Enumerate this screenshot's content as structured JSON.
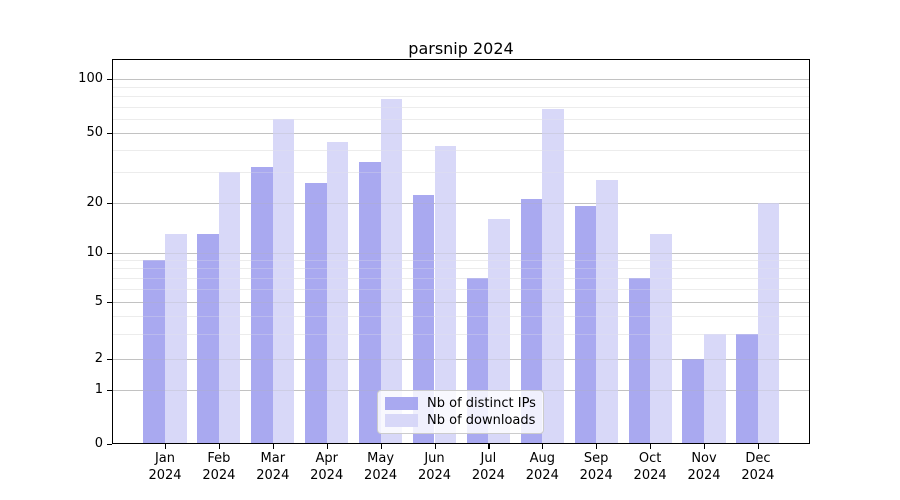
{
  "chart_data": {
    "type": "bar",
    "title": "parsnip 2024",
    "categories": [
      "Jan",
      "Feb",
      "Mar",
      "Apr",
      "May",
      "Jun",
      "Jul",
      "Aug",
      "Sep",
      "Oct",
      "Nov",
      "Dec"
    ],
    "year": "2024",
    "series": [
      {
        "name": "Nb of distinct IPs",
        "color": "#a0a0ee",
        "values": [
          9,
          13,
          32,
          26,
          34,
          22,
          7,
          21,
          19,
          7,
          2,
          3
        ]
      },
      {
        "name": "Nb of downloads",
        "color": "#d4d4f7",
        "values": [
          13,
          30,
          60,
          44,
          77,
          42,
          16,
          68,
          27,
          13,
          3,
          20
        ]
      }
    ],
    "y_axis": {
      "scale": "symlog",
      "major_ticks": [
        0,
        1,
        2,
        5,
        10,
        20,
        50,
        100
      ],
      "minor_ticks": [
        3,
        4,
        6,
        7,
        8,
        9,
        30,
        40,
        60,
        70,
        80,
        90
      ],
      "ylim": [
        0,
        130
      ]
    },
    "x_axis": {
      "tick_label_lines": 2
    },
    "legend_entries": [
      "Nb of distinct IPs",
      "Nb of downloads"
    ],
    "grid": "on"
  },
  "colors": {
    "grid_major": "#c3c3c3",
    "grid_minor": "#ececec",
    "spine": "#000000",
    "background": "#ffffff"
  }
}
